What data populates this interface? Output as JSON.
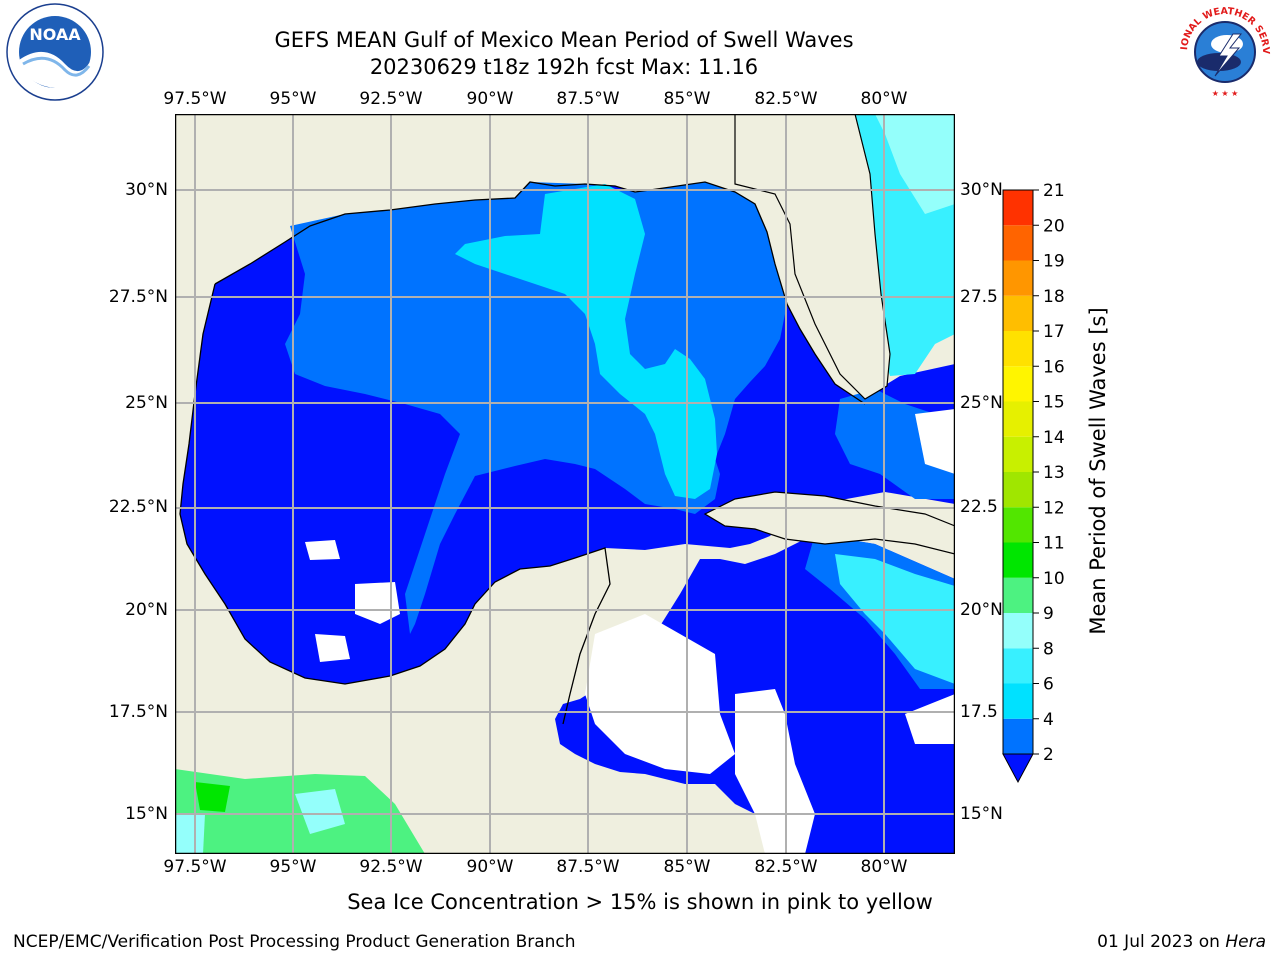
{
  "title": {
    "line1": "GEFS MEAN Gulf of Mexico Mean Period of Swell Waves",
    "line2": "20230629 t18z 192h fcst   Max: 11.16"
  },
  "map": {
    "lon_labels": [
      "97.5°W",
      "95°W",
      "92.5°W",
      "90°W",
      "87.5°W",
      "85°W",
      "82.5°W",
      "80°W"
    ],
    "lat_labels": [
      "30°N",
      "27.5°N",
      "25°N",
      "22.5°N",
      "20°N",
      "17.5°N",
      "15°N"
    ],
    "right_lat_labels": [
      "30°N",
      "27.5",
      "25°N",
      "22.5",
      "20°N",
      "17.5",
      "15°N"
    ],
    "lon_range": [
      -98,
      -78.3
    ],
    "lat_range": [
      14,
      31.8
    ]
  },
  "colorbar": {
    "label": "Mean Period of Swell Waves [s]",
    "ticks": [
      "2",
      "4",
      "6",
      "8",
      "9",
      "10",
      "11",
      "12",
      "13",
      "14",
      "15",
      "16",
      "17",
      "18",
      "19",
      "20",
      "21"
    ],
    "colors": [
      "#0073ff",
      "#00e1ff",
      "#38f0ff",
      "#94fffb",
      "#4df281",
      "#00e600",
      "#52e600",
      "#a0e600",
      "#c8f000",
      "#e6f000",
      "#fff500",
      "#ffe100",
      "#ffbe00",
      "#ff9600",
      "#ff6400",
      "#ff3200"
    ],
    "under_color": "#0011ff"
  },
  "subtitle": "Sea Ice Concentration > 15% is shown in pink to yellow",
  "footer": {
    "left": "NCEP/EMC/Verification Post Processing Product Generation Branch",
    "right_prefix": "01 Jul 2023 on ",
    "right_host": "Hera"
  },
  "logos": {
    "noaa_text": "NOAA",
    "nws_text": "NATIONAL WEATHER SERVICE"
  }
}
